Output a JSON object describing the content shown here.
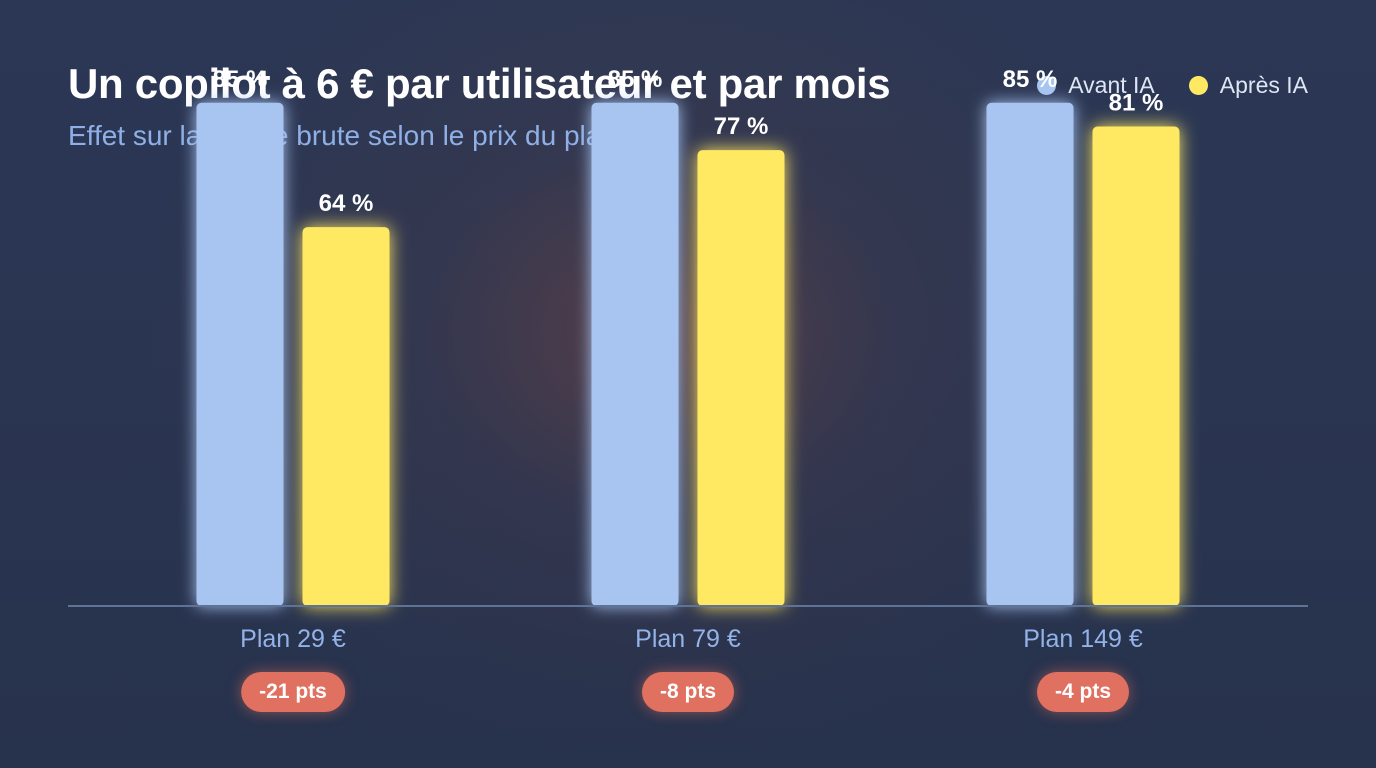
{
  "header": {
    "title": "Un copilot à 6 € par utilisateur et par mois",
    "subtitle": "Effet sur la marge brute selon le prix du plan"
  },
  "legend": [
    {
      "label": "Avant IA",
      "color": "#a8c5f2"
    },
    {
      "label": "Après IA",
      "color": "#ffe963"
    }
  ],
  "chart_data": {
    "type": "bar",
    "title": "Un copilot à 6 € par utilisateur et par mois",
    "subtitle": "Effet sur la marge brute selon le prix du plan",
    "categories": [
      "Plan 29 €",
      "Plan 79 €",
      "Plan 149 €"
    ],
    "series": [
      {
        "name": "Avant IA",
        "values": [
          85,
          85,
          85
        ],
        "labels": [
          "85 %",
          "85 %",
          "85 %"
        ],
        "color": "#a8c5f2"
      },
      {
        "name": "Après IA",
        "values": [
          64,
          77,
          81
        ],
        "labels": [
          "64 %",
          "77 %",
          "81 %"
        ],
        "color": "#ffe963"
      }
    ],
    "deltas": [
      "-21 pts",
      "-8 pts",
      "-4 pts"
    ],
    "delta_color": "#e07060",
    "ylim": [
      0,
      100
    ],
    "grid": false,
    "legend_position": "top-right",
    "xlabel": "",
    "ylabel": ""
  }
}
